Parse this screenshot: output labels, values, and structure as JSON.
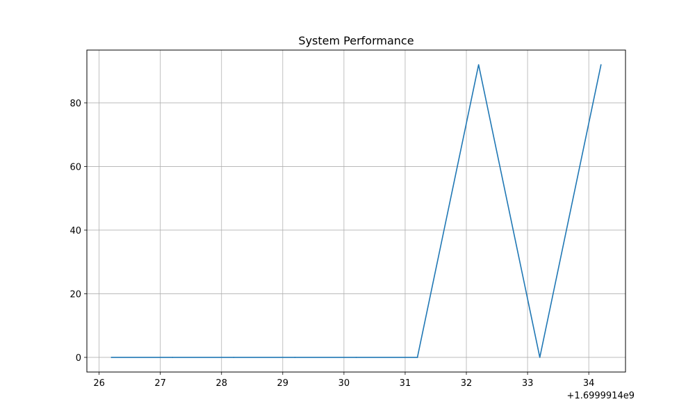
{
  "chart_data": {
    "type": "line",
    "title": "System Performance",
    "xlabel": "",
    "ylabel": "",
    "x_offset_label": "+1.6999914e9",
    "x_ticks": [
      "26",
      "27",
      "28",
      "29",
      "30",
      "31",
      "32",
      "33",
      "34"
    ],
    "y_ticks": [
      "0",
      "20",
      "40",
      "60",
      "80"
    ],
    "xlim": [
      25.8,
      34.6
    ],
    "ylim": [
      -4.6,
      96.6
    ],
    "grid": true,
    "legend": "none",
    "series": [
      {
        "color": "#1f77b4",
        "x": [
          26.2,
          27.2,
          28.2,
          29.2,
          30.2,
          31.2,
          32.2,
          33.2,
          34.2
        ],
        "y": [
          0,
          0,
          0,
          0,
          0,
          0,
          92,
          0,
          92
        ]
      }
    ]
  }
}
